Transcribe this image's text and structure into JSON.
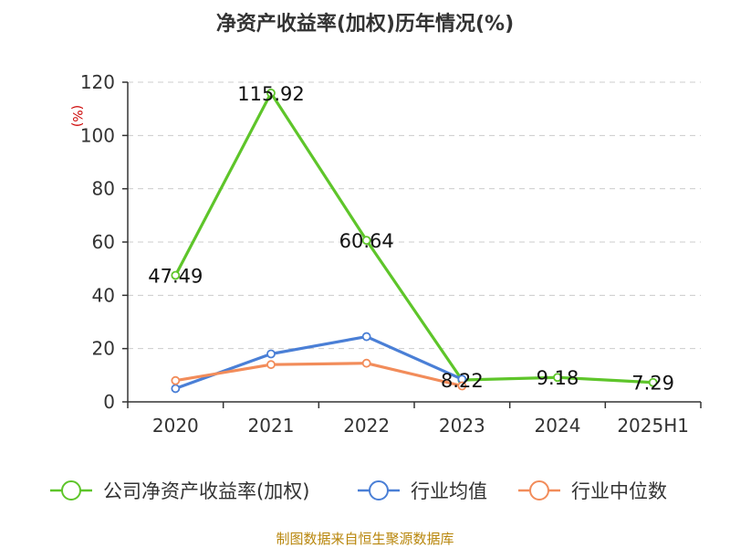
{
  "chart_data": {
    "type": "line",
    "title": "净资产收益率(加权)历年情况(%)",
    "ylabel": "(%)",
    "xlabel": "",
    "ylim": [
      0,
      120
    ],
    "yticks": [
      0,
      20,
      40,
      60,
      80,
      100,
      120
    ],
    "grid": true,
    "legend_position": "bottom",
    "categories": [
      "2020",
      "2021",
      "2022",
      "2023",
      "2024",
      "2025H1"
    ],
    "series": [
      {
        "name": "公司净资产收益率(加权)",
        "color": "#5ec52a",
        "values": [
          47.49,
          115.92,
          60.64,
          8.22,
          9.18,
          7.29
        ],
        "labels": [
          "47.49",
          "115.92",
          "60.64",
          "8.22",
          "9.18",
          "7.29"
        ]
      },
      {
        "name": "行业均值",
        "color": "#4a7fd6",
        "values": [
          5.0,
          18.0,
          24.5,
          8.5,
          null,
          null
        ]
      },
      {
        "name": "行业中位数",
        "color": "#f28c5a",
        "values": [
          8.0,
          14.0,
          14.5,
          6.0,
          null,
          null
        ]
      }
    ]
  },
  "footer": "制图数据来自恒生聚源数据库"
}
